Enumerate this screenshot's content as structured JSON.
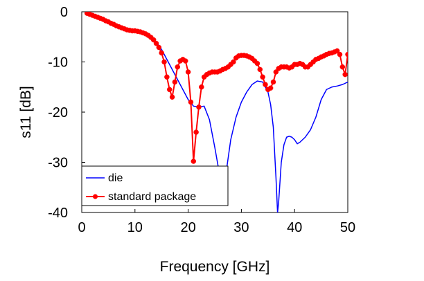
{
  "chart_data": {
    "type": "line",
    "title": "",
    "xlabel": "Frequency [GHz]",
    "ylabel": "s11 [dB]",
    "xlim": [
      0,
      50
    ],
    "ylim": [
      -40,
      0
    ],
    "x_ticks": [
      "0",
      "10",
      "20",
      "30",
      "40",
      "50"
    ],
    "y_ticks": [
      "0",
      "-10",
      "-20",
      "-30",
      "-40"
    ],
    "grid": false,
    "legend_position": "bottom-left",
    "series": [
      {
        "name": "die",
        "color": "#0000ff",
        "marker": "none",
        "x": [
          1,
          2,
          4,
          6,
          8,
          10,
          12,
          14,
          15,
          16,
          17,
          18,
          19,
          20,
          21,
          22,
          23,
          24,
          25,
          26,
          26.5,
          27,
          28,
          29,
          30,
          31,
          32,
          33,
          34,
          35,
          35.5,
          36,
          36.5,
          36.8,
          37,
          37.5,
          38,
          38.5,
          39,
          39.5,
          40,
          40.5,
          41,
          42,
          43,
          44,
          45,
          46,
          47,
          48,
          49,
          50
        ],
        "y": [
          -0.3,
          -0.8,
          -1.8,
          -2.8,
          -3.5,
          -4.0,
          -4.6,
          -6.0,
          -7.5,
          -9.5,
          -11.5,
          -13.5,
          -15.5,
          -17.5,
          -18.8,
          -19.0,
          -18.8,
          -21.5,
          -27.0,
          -33.0,
          -36.5,
          -33.0,
          -25.5,
          -21.0,
          -18.0,
          -16.0,
          -14.5,
          -13.8,
          -14.0,
          -16.0,
          -18.5,
          -23.0,
          -33.0,
          -40,
          -38.0,
          -30.0,
          -26.5,
          -25.0,
          -24.8,
          -25.0,
          -25.5,
          -26.3,
          -26.0,
          -25.0,
          -23.5,
          -21.0,
          -17.5,
          -15.5,
          -15.0,
          -14.8,
          -14.5,
          -14.0
        ]
      },
      {
        "name": "standard package",
        "color": "#ff0000",
        "marker": "circle",
        "x": [
          1,
          1.5,
          2,
          2.5,
          3,
          3.5,
          4,
          4.5,
          5,
          5.5,
          6,
          6.5,
          7,
          7.5,
          8,
          8.5,
          9,
          9.5,
          10,
          10.5,
          11,
          11.5,
          12,
          12.5,
          13,
          13.5,
          14,
          14.5,
          15,
          15.5,
          16,
          16.5,
          17,
          17.5,
          18,
          18.5,
          19,
          19.5,
          20,
          20.5,
          21,
          21.5,
          22,
          22.5,
          23,
          23.5,
          24,
          24.5,
          25,
          25.5,
          26,
          26.5,
          27,
          27.5,
          28,
          28.5,
          29,
          29.5,
          30,
          30.5,
          31,
          31.5,
          32,
          32.5,
          33,
          33.5,
          34,
          34.5,
          35,
          35.5,
          36,
          36.5,
          37,
          37.5,
          38,
          38.5,
          39,
          39.5,
          40,
          40.5,
          41,
          41.5,
          42,
          42.5,
          43,
          43.5,
          44,
          44.5,
          45,
          45.5,
          46,
          46.5,
          47,
          47.5,
          48,
          48.5,
          49,
          49.5,
          50
        ],
        "y": [
          -0.3,
          -0.5,
          -0.7,
          -0.9,
          -1.1,
          -1.3,
          -1.5,
          -1.8,
          -2.0,
          -2.3,
          -2.5,
          -2.8,
          -3.0,
          -3.2,
          -3.4,
          -3.6,
          -3.7,
          -3.8,
          -3.8,
          -3.9,
          -4.0,
          -4.2,
          -4.4,
          -4.7,
          -5.1,
          -5.6,
          -6.3,
          -7.1,
          -8.2,
          -10.0,
          -13.0,
          -15.5,
          -17.0,
          -14.0,
          -11.0,
          -9.8,
          -9.5,
          -9.8,
          -12.0,
          -18.0,
          -29.8,
          -24.0,
          -19.0,
          -15.0,
          -13.0,
          -12.5,
          -12.2,
          -12.0,
          -12.0,
          -12.0,
          -11.8,
          -11.5,
          -11.3,
          -11.0,
          -10.5,
          -10.0,
          -9.2,
          -8.8,
          -8.7,
          -8.7,
          -8.8,
          -9.0,
          -9.3,
          -9.8,
          -10.3,
          -11.5,
          -13.0,
          -14.5,
          -15.5,
          -15.2,
          -14.0,
          -12.0,
          -11.3,
          -11.0,
          -11.0,
          -11.0,
          -11.2,
          -11.0,
          -10.5,
          -10.5,
          -10.3,
          -10.5,
          -11.0,
          -11.0,
          -10.5,
          -10.0,
          -9.5,
          -9.3,
          -9.0,
          -8.8,
          -8.5,
          -8.3,
          -8.2,
          -8.0,
          -7.8,
          -8.5,
          -11.0,
          -12.5,
          -8.5
        ]
      }
    ]
  }
}
